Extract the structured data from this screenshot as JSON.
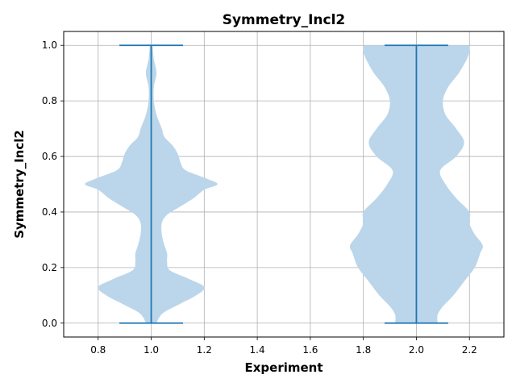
{
  "chart_data": {
    "type": "violin",
    "title": "Symmetry_Incl2",
    "xlabel": "Experiment",
    "ylabel": "Symmetry_Incl2",
    "xlim": [
      0.67,
      2.33
    ],
    "ylim": [
      -0.05,
      1.05
    ],
    "xticks": [
      "0.8",
      "1.0",
      "1.2",
      "1.4",
      "1.6",
      "1.8",
      "2.0",
      "2.2"
    ],
    "yticks": [
      "0.0",
      "0.2",
      "0.4",
      "0.6",
      "0.8",
      "1.0"
    ],
    "grid": true,
    "colors": {
      "body": "#bbd6ea",
      "line": "#1f77b4",
      "grid": "#b0b0b0"
    },
    "violins": [
      {
        "position": 1.0,
        "min": 0.0,
        "max": 1.0,
        "half_width": [
          [
            0.0,
            0.02
          ],
          [
            0.02,
            0.03
          ],
          [
            0.04,
            0.05
          ],
          [
            0.07,
            0.11
          ],
          [
            0.1,
            0.17
          ],
          [
            0.13,
            0.2
          ],
          [
            0.16,
            0.14
          ],
          [
            0.19,
            0.07
          ],
          [
            0.22,
            0.06
          ],
          [
            0.25,
            0.06
          ],
          [
            0.28,
            0.05
          ],
          [
            0.32,
            0.04
          ],
          [
            0.36,
            0.04
          ],
          [
            0.39,
            0.06
          ],
          [
            0.42,
            0.11
          ],
          [
            0.45,
            0.16
          ],
          [
            0.48,
            0.2
          ],
          [
            0.5,
            0.25
          ],
          [
            0.52,
            0.21
          ],
          [
            0.55,
            0.13
          ],
          [
            0.58,
            0.11
          ],
          [
            0.61,
            0.1
          ],
          [
            0.64,
            0.08
          ],
          [
            0.67,
            0.05
          ],
          [
            0.7,
            0.04
          ],
          [
            0.75,
            0.02
          ],
          [
            0.8,
            0.01
          ],
          [
            0.85,
            0.01
          ],
          [
            0.9,
            0.02
          ],
          [
            0.95,
            0.01
          ],
          [
            1.0,
            0.005
          ]
        ]
      },
      {
        "position": 2.0,
        "min": 0.0,
        "max": 1.0,
        "half_width": [
          [
            0.0,
            0.08
          ],
          [
            0.03,
            0.08
          ],
          [
            0.06,
            0.1
          ],
          [
            0.1,
            0.14
          ],
          [
            0.15,
            0.18
          ],
          [
            0.2,
            0.22
          ],
          [
            0.25,
            0.24
          ],
          [
            0.28,
            0.25
          ],
          [
            0.32,
            0.22
          ],
          [
            0.36,
            0.2
          ],
          [
            0.4,
            0.2
          ],
          [
            0.45,
            0.15
          ],
          [
            0.5,
            0.11
          ],
          [
            0.55,
            0.09
          ],
          [
            0.6,
            0.15
          ],
          [
            0.65,
            0.18
          ],
          [
            0.7,
            0.15
          ],
          [
            0.75,
            0.11
          ],
          [
            0.8,
            0.1
          ],
          [
            0.85,
            0.12
          ],
          [
            0.9,
            0.16
          ],
          [
            0.95,
            0.19
          ],
          [
            0.98,
            0.2
          ],
          [
            1.0,
            0.2
          ]
        ]
      }
    ]
  }
}
